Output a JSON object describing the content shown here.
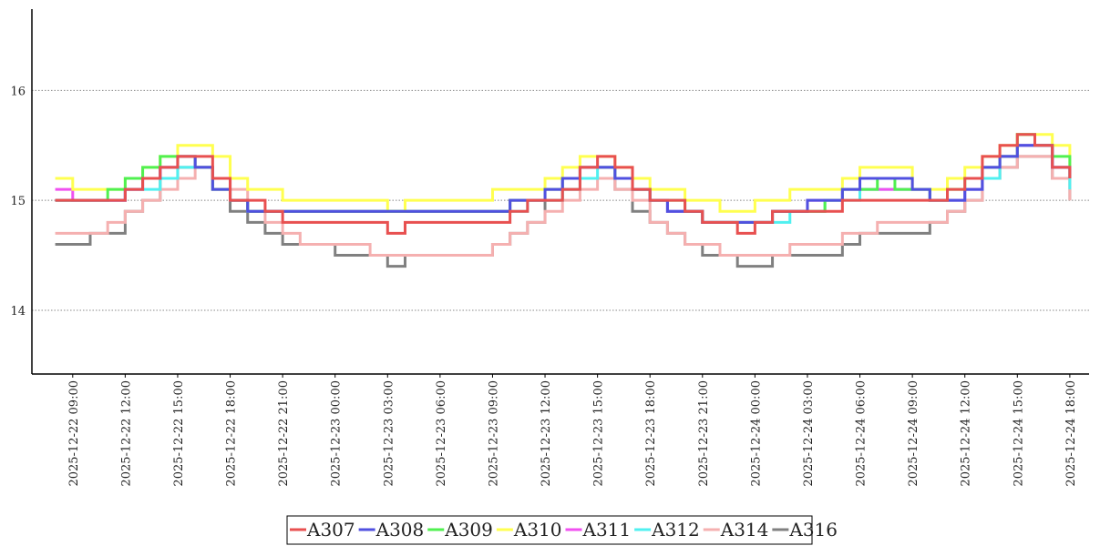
{
  "chart_data": {
    "type": "line",
    "step": "post",
    "grid": true,
    "legend": "bottom",
    "x": [
      "2025-12-22 08:00",
      "2025-12-22 09:00",
      "2025-12-22 10:00",
      "2025-12-22 11:00",
      "2025-12-22 12:00",
      "2025-12-22 13:00",
      "2025-12-22 14:00",
      "2025-12-22 15:00",
      "2025-12-22 16:00",
      "2025-12-22 17:00",
      "2025-12-22 18:00",
      "2025-12-22 19:00",
      "2025-12-22 20:00",
      "2025-12-22 21:00",
      "2025-12-22 22:00",
      "2025-12-22 23:00",
      "2025-12-23 00:00",
      "2025-12-23 01:00",
      "2025-12-23 02:00",
      "2025-12-23 03:00",
      "2025-12-23 04:00",
      "2025-12-23 05:00",
      "2025-12-23 06:00",
      "2025-12-23 07:00",
      "2025-12-23 08:00",
      "2025-12-23 09:00",
      "2025-12-23 10:00",
      "2025-12-23 11:00",
      "2025-12-23 12:00",
      "2025-12-23 13:00",
      "2025-12-23 14:00",
      "2025-12-23 15:00",
      "2025-12-23 16:00",
      "2025-12-23 17:00",
      "2025-12-23 18:00",
      "2025-12-23 19:00",
      "2025-12-23 20:00",
      "2025-12-23 21:00",
      "2025-12-23 22:00",
      "2025-12-23 23:00",
      "2025-12-24 00:00",
      "2025-12-24 01:00",
      "2025-12-24 02:00",
      "2025-12-24 03:00",
      "2025-12-24 04:00",
      "2025-12-24 05:00",
      "2025-12-24 06:00",
      "2025-12-24 07:00",
      "2025-12-24 08:00",
      "2025-12-24 09:00",
      "2025-12-24 10:00",
      "2025-12-24 11:00",
      "2025-12-24 12:00",
      "2025-12-24 13:00",
      "2025-12-24 14:00",
      "2025-12-24 15:00",
      "2025-12-24 16:00",
      "2025-12-24 17:00",
      "2025-12-24 18:00"
    ],
    "xlim": [
      "2025-12-22 06:40",
      "2025-12-24 19:06"
    ],
    "xticks": [
      "2025-12-22 09:00",
      "2025-12-22 12:00",
      "2025-12-22 15:00",
      "2025-12-22 18:00",
      "2025-12-22 21:00",
      "2025-12-23 00:00",
      "2025-12-23 03:00",
      "2025-12-23 06:00",
      "2025-12-23 09:00",
      "2025-12-23 12:00",
      "2025-12-23 15:00",
      "2025-12-23 18:00",
      "2025-12-23 21:00",
      "2025-12-24 00:00",
      "2025-12-24 03:00",
      "2025-12-24 06:00",
      "2025-12-24 09:00",
      "2025-12-24 12:00",
      "2025-12-24 15:00",
      "2025-12-24 18:00"
    ],
    "ylim": [
      13.42,
      16.74
    ],
    "yticks": [
      14,
      15,
      16
    ],
    "series": [
      {
        "name": "A307",
        "color": "#e85050",
        "values": [
          15.0,
          15.0,
          15.0,
          15.0,
          15.1,
          15.2,
          15.3,
          15.4,
          15.4,
          15.2,
          15.0,
          15.0,
          14.9,
          14.8,
          14.8,
          14.8,
          14.8,
          14.8,
          14.8,
          14.7,
          14.8,
          14.8,
          14.8,
          14.8,
          14.8,
          14.8,
          14.9,
          15.0,
          15.0,
          15.1,
          15.3,
          15.4,
          15.3,
          15.1,
          15.0,
          15.0,
          14.9,
          14.8,
          14.8,
          14.7,
          14.8,
          14.9,
          14.9,
          14.9,
          14.9,
          15.0,
          15.0,
          15.0,
          15.0,
          15.0,
          15.0,
          15.1,
          15.2,
          15.4,
          15.5,
          15.6,
          15.5,
          15.3,
          15.2
        ]
      },
      {
        "name": "A308",
        "color": "#5050e0",
        "values": [
          15.0,
          15.0,
          15.0,
          15.0,
          15.1,
          15.2,
          15.3,
          15.4,
          15.3,
          15.1,
          15.0,
          14.9,
          14.9,
          14.9,
          14.9,
          14.9,
          14.9,
          14.9,
          14.9,
          14.9,
          14.9,
          14.9,
          14.9,
          14.9,
          14.9,
          14.9,
          15.0,
          15.0,
          15.1,
          15.2,
          15.3,
          15.3,
          15.2,
          15.1,
          15.0,
          14.9,
          14.9,
          14.8,
          14.8,
          14.8,
          14.8,
          14.9,
          14.9,
          15.0,
          15.0,
          15.1,
          15.2,
          15.2,
          15.2,
          15.1,
          15.0,
          15.0,
          15.1,
          15.3,
          15.4,
          15.5,
          15.5,
          15.3,
          15.2
        ]
      },
      {
        "name": "A309",
        "color": "#50f050",
        "values": [
          15.0,
          15.0,
          15.0,
          15.1,
          15.2,
          15.3,
          15.4,
          15.4,
          15.3,
          15.1,
          15.0,
          14.9,
          14.9,
          14.9,
          14.9,
          14.9,
          14.9,
          14.9,
          14.9,
          14.9,
          14.9,
          14.9,
          14.9,
          14.9,
          14.9,
          14.9,
          15.0,
          15.0,
          15.1,
          15.2,
          15.3,
          15.3,
          15.2,
          15.1,
          15.0,
          15.0,
          14.9,
          14.8,
          14.8,
          14.8,
          14.8,
          14.9,
          14.9,
          14.9,
          15.0,
          15.1,
          15.1,
          15.2,
          15.1,
          15.1,
          15.0,
          15.1,
          15.2,
          15.3,
          15.4,
          15.6,
          15.5,
          15.4,
          15.2
        ]
      },
      {
        "name": "A310",
        "color": "#ffff50",
        "values": [
          15.2,
          15.1,
          15.1,
          15.1,
          15.2,
          15.3,
          15.4,
          15.5,
          15.5,
          15.4,
          15.2,
          15.1,
          15.1,
          15.0,
          15.0,
          15.0,
          15.0,
          15.0,
          15.0,
          14.9,
          15.0,
          15.0,
          15.0,
          15.0,
          15.0,
          15.1,
          15.1,
          15.1,
          15.2,
          15.3,
          15.4,
          15.4,
          15.3,
          15.2,
          15.1,
          15.1,
          15.0,
          15.0,
          14.9,
          14.9,
          15.0,
          15.0,
          15.1,
          15.1,
          15.1,
          15.2,
          15.3,
          15.3,
          15.3,
          15.1,
          15.1,
          15.2,
          15.3,
          15.4,
          15.5,
          15.6,
          15.6,
          15.5,
          15.3
        ]
      },
      {
        "name": "A311",
        "color": "#f050f0",
        "values": [
          15.1,
          15.0,
          15.0,
          15.0,
          15.1,
          15.2,
          15.3,
          15.4,
          15.3,
          15.2,
          15.0,
          14.9,
          14.9,
          14.9,
          14.9,
          14.9,
          14.9,
          14.9,
          14.9,
          14.9,
          14.9,
          14.9,
          14.9,
          14.9,
          14.9,
          14.9,
          15.0,
          15.0,
          15.1,
          15.2,
          15.3,
          15.3,
          15.2,
          15.1,
          15.0,
          14.9,
          14.9,
          14.8,
          14.8,
          14.8,
          14.8,
          14.9,
          14.9,
          15.0,
          15.0,
          15.1,
          15.1,
          15.1,
          15.1,
          15.1,
          15.0,
          15.0,
          15.1,
          15.3,
          15.4,
          15.5,
          15.5,
          15.3,
          15.2
        ]
      },
      {
        "name": "A312",
        "color": "#50f0f0",
        "values": [
          15.0,
          15.0,
          15.0,
          15.0,
          15.1,
          15.1,
          15.2,
          15.3,
          15.3,
          15.2,
          15.0,
          14.9,
          14.9,
          14.9,
          14.9,
          14.9,
          14.9,
          14.9,
          14.9,
          14.9,
          14.9,
          14.9,
          14.9,
          14.9,
          14.9,
          14.9,
          14.9,
          15.0,
          15.0,
          15.1,
          15.2,
          15.3,
          15.2,
          15.1,
          15.0,
          14.9,
          14.9,
          14.8,
          14.8,
          14.8,
          14.8,
          14.8,
          14.9,
          14.9,
          15.0,
          15.0,
          15.1,
          15.1,
          15.1,
          15.1,
          15.0,
          15.0,
          15.1,
          15.2,
          15.4,
          15.5,
          15.5,
          15.3,
          15.1
        ]
      },
      {
        "name": "A314",
        "color": "#f5b0b0",
        "values": [
          14.7,
          14.7,
          14.7,
          14.8,
          14.9,
          15.0,
          15.1,
          15.2,
          15.3,
          15.2,
          15.1,
          14.9,
          14.8,
          14.7,
          14.6,
          14.6,
          14.6,
          14.6,
          14.5,
          14.5,
          14.5,
          14.5,
          14.5,
          14.5,
          14.5,
          14.6,
          14.7,
          14.8,
          14.9,
          15.0,
          15.1,
          15.2,
          15.1,
          15.0,
          14.8,
          14.7,
          14.6,
          14.6,
          14.5,
          14.5,
          14.5,
          14.5,
          14.6,
          14.6,
          14.6,
          14.7,
          14.7,
          14.8,
          14.8,
          14.8,
          14.8,
          14.9,
          15.0,
          15.2,
          15.3,
          15.4,
          15.4,
          15.2,
          15.0
        ]
      },
      {
        "name": "A316",
        "color": "#808080",
        "values": [
          14.6,
          14.6,
          14.7,
          14.7,
          14.9,
          15.0,
          15.2,
          15.3,
          15.3,
          15.1,
          14.9,
          14.8,
          14.7,
          14.6,
          14.6,
          14.6,
          14.5,
          14.5,
          14.5,
          14.4,
          14.5,
          14.5,
          14.5,
          14.5,
          14.5,
          14.6,
          14.7,
          14.8,
          15.0,
          15.1,
          15.2,
          15.2,
          15.1,
          14.9,
          14.8,
          14.7,
          14.6,
          14.5,
          14.5,
          14.4,
          14.4,
          14.5,
          14.5,
          14.5,
          14.5,
          14.6,
          14.7,
          14.7,
          14.7,
          14.7,
          14.8,
          14.9,
          15.0,
          15.2,
          15.3,
          15.4,
          15.4,
          15.2,
          15.0
        ]
      }
    ]
  }
}
